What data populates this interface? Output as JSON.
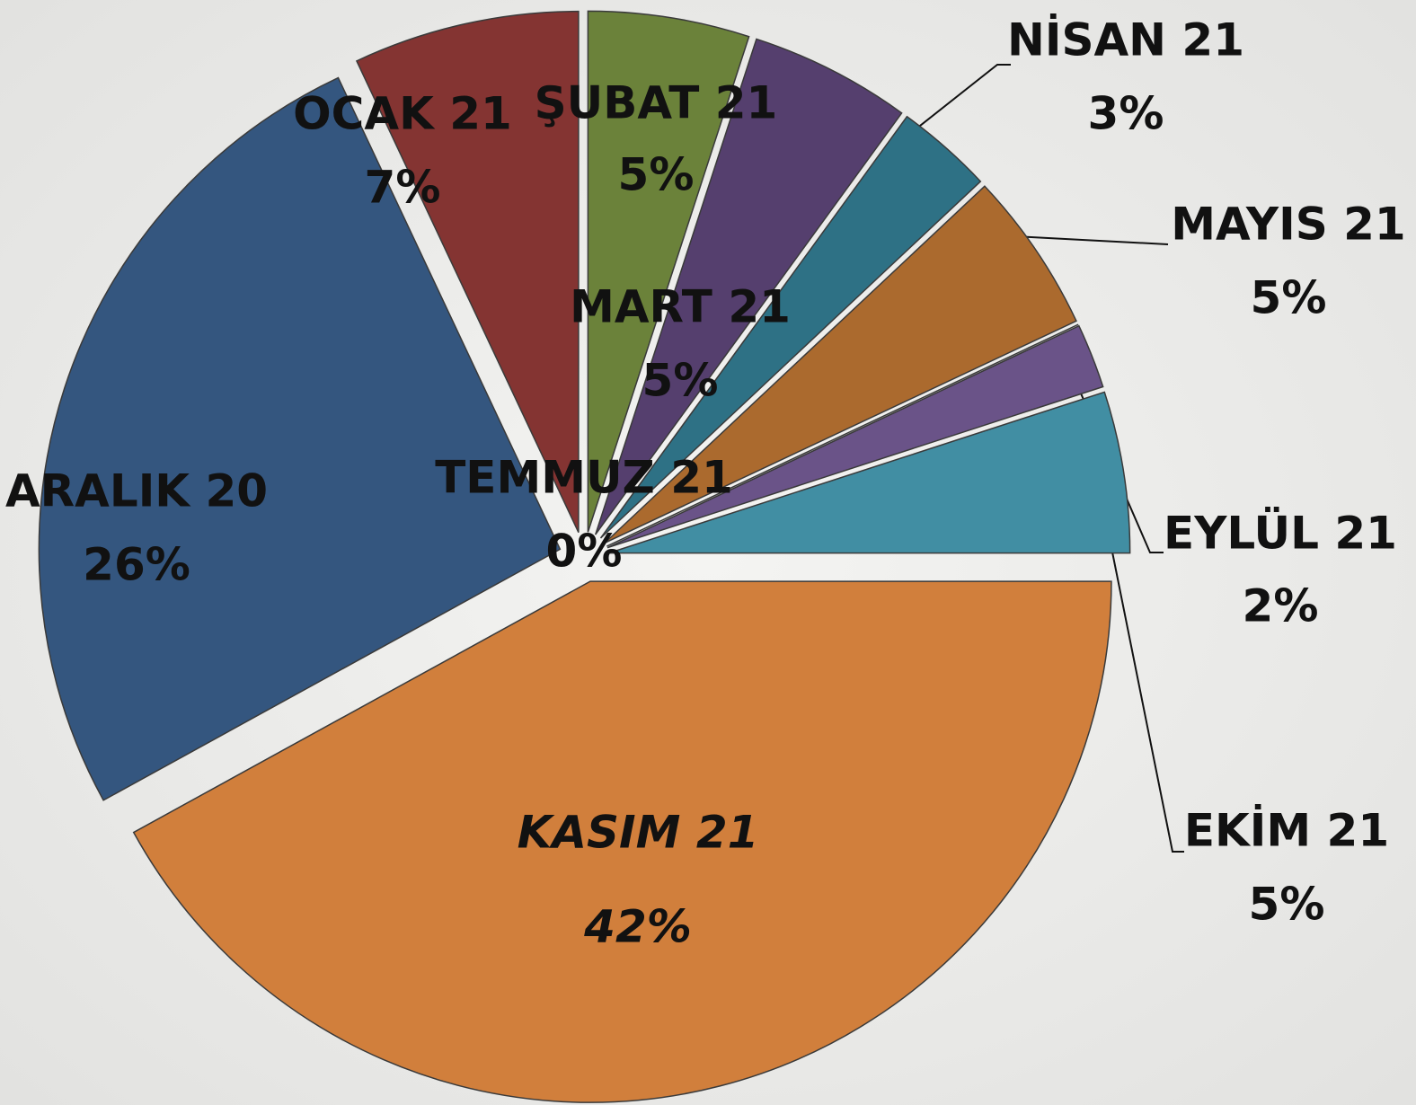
{
  "chart_data": {
    "type": "pie",
    "categories": [
      "ARALIK 20",
      "OCAK 21",
      "ŞUBAT 21",
      "MART 21",
      "NİSAN 21",
      "MAYIS 21",
      "TEMMUZ 21",
      "EYLÜL 21",
      "EKİM 21",
      "KASIM 21"
    ],
    "values": [
      26,
      7,
      5,
      5,
      3,
      5,
      0,
      2,
      5,
      42
    ],
    "value_labels": [
      "26%",
      "7%",
      "5%",
      "5%",
      "3%",
      "5%",
      "0%",
      "2%",
      "5%",
      "42%"
    ],
    "colors": [
      "#34567f",
      "#843432",
      "#6b823a",
      "#553f6e",
      "#2e7185",
      "#ab6a2e",
      "#3a5f95",
      "#6a5388",
      "#418ea3",
      "#d17f3c"
    ]
  }
}
